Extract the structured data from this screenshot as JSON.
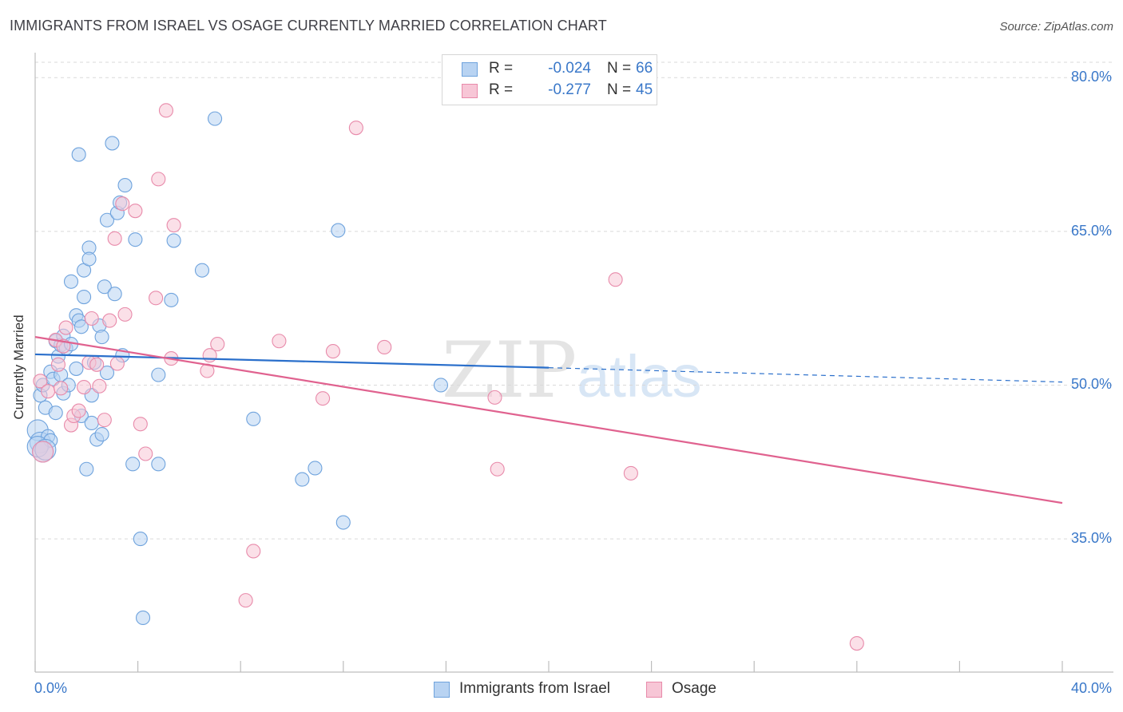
{
  "title": "IMMIGRANTS FROM ISRAEL VS OSAGE CURRENTLY MARRIED CORRELATION CHART",
  "source": "Source: ZipAtlas.com",
  "watermark": {
    "zip": "ZIP",
    "atlas": "atlas"
  },
  "legend": {
    "rows": [
      {
        "r_label": "R =",
        "r_value": "-0.024",
        "n_label": "N =",
        "n_value": "66"
      },
      {
        "r_label": "R =",
        "r_value": "-0.277",
        "n_label": "N =",
        "n_value": "45"
      }
    ]
  },
  "bottom_legend": [
    "Immigrants from Israel",
    "Osage"
  ],
  "colors": {
    "blue_fill": "#b8d3f2",
    "blue_stroke": "#6fa3dd",
    "blue_line": "#2a6fcb",
    "pink_fill": "#f7c6d6",
    "pink_stroke": "#e88aaa",
    "pink_line": "#e0628f",
    "tick_text": "#3a78c9",
    "grid": "#d9d9d9"
  },
  "chart_data": {
    "type": "scatter",
    "title": "IMMIGRANTS FROM ISRAEL VS OSAGE CURRENTLY MARRIED CORRELATION CHART",
    "xlabel": "",
    "ylabel": "Currently Married",
    "xlim": [
      0,
      40
    ],
    "ylim": [
      22,
      81.5
    ],
    "x_tick_labels": [
      "0.0%",
      "40.0%"
    ],
    "y_ticks": [
      35,
      50,
      65,
      80
    ],
    "y_tick_labels": [
      "35.0%",
      "50.0%",
      "65.0%",
      "80.0%"
    ],
    "grid": true,
    "legend_position": "top-center",
    "series": [
      {
        "name": "Immigrants from Israel",
        "r": -0.024,
        "n": 66,
        "trend": {
          "x": [
            0,
            20,
            40
          ],
          "y": [
            53.0,
            51.7,
            50.3
          ],
          "solid_until": 20
        },
        "points": [
          [
            0.1,
            45.6
          ],
          [
            0.2,
            44.4
          ],
          [
            0.2,
            49.0
          ],
          [
            0.3,
            50.0
          ],
          [
            0.3,
            43.5
          ],
          [
            0.4,
            47.8
          ],
          [
            0.5,
            45.0
          ],
          [
            0.6,
            51.3
          ],
          [
            0.6,
            44.6
          ],
          [
            0.7,
            50.6
          ],
          [
            0.8,
            54.3
          ],
          [
            0.8,
            47.3
          ],
          [
            0.9,
            52.8
          ],
          [
            1.0,
            51.0
          ],
          [
            1.0,
            53.9
          ],
          [
            1.1,
            49.2
          ],
          [
            1.1,
            54.8
          ],
          [
            1.2,
            53.6
          ],
          [
            1.3,
            50.0
          ],
          [
            1.4,
            54.0
          ],
          [
            1.4,
            60.1
          ],
          [
            1.6,
            51.6
          ],
          [
            1.6,
            56.8
          ],
          [
            1.7,
            56.3
          ],
          [
            1.7,
            72.5
          ],
          [
            1.8,
            47.0
          ],
          [
            1.8,
            55.7
          ],
          [
            1.9,
            61.2
          ],
          [
            1.9,
            58.6
          ],
          [
            2.0,
            41.8
          ],
          [
            2.1,
            63.4
          ],
          [
            2.1,
            62.3
          ],
          [
            2.2,
            46.3
          ],
          [
            2.2,
            49.0
          ],
          [
            2.3,
            52.2
          ],
          [
            2.4,
            44.7
          ],
          [
            2.5,
            55.8
          ],
          [
            2.6,
            54.7
          ],
          [
            2.6,
            45.2
          ],
          [
            2.7,
            59.6
          ],
          [
            2.8,
            66.1
          ],
          [
            2.8,
            51.2
          ],
          [
            3.0,
            73.6
          ],
          [
            3.1,
            58.9
          ],
          [
            3.2,
            66.8
          ],
          [
            3.3,
            67.8
          ],
          [
            3.4,
            52.9
          ],
          [
            3.5,
            69.5
          ],
          [
            3.8,
            42.3
          ],
          [
            3.9,
            64.2
          ],
          [
            4.1,
            35.0
          ],
          [
            4.2,
            27.3
          ],
          [
            4.8,
            51.0
          ],
          [
            4.8,
            42.3
          ],
          [
            5.3,
            58.3
          ],
          [
            5.4,
            64.1
          ],
          [
            6.5,
            61.2
          ],
          [
            7.0,
            76.0
          ],
          [
            8.5,
            46.7
          ],
          [
            10.4,
            40.8
          ],
          [
            10.9,
            41.9
          ],
          [
            11.8,
            65.1
          ],
          [
            12.0,
            36.6
          ],
          [
            15.8,
            50.0
          ],
          [
            0.1,
            44.0
          ],
          [
            0.4,
            43.7
          ]
        ]
      },
      {
        "name": "Osage",
        "r": -0.277,
        "n": 45,
        "trend": {
          "x": [
            0,
            40
          ],
          "y": [
            54.7,
            38.5
          ],
          "solid_until": 40
        },
        "points": [
          [
            0.2,
            50.4
          ],
          [
            0.3,
            43.5
          ],
          [
            0.5,
            49.4
          ],
          [
            0.8,
            54.4
          ],
          [
            0.9,
            52.0
          ],
          [
            1.0,
            49.7
          ],
          [
            1.2,
            55.6
          ],
          [
            1.4,
            46.1
          ],
          [
            1.5,
            47.0
          ],
          [
            1.7,
            47.5
          ],
          [
            1.9,
            49.8
          ],
          [
            2.1,
            52.2
          ],
          [
            2.2,
            56.5
          ],
          [
            2.4,
            52.0
          ],
          [
            2.5,
            49.9
          ],
          [
            2.7,
            46.6
          ],
          [
            2.9,
            56.3
          ],
          [
            3.1,
            64.3
          ],
          [
            3.2,
            52.1
          ],
          [
            3.4,
            67.7
          ],
          [
            3.5,
            56.9
          ],
          [
            3.9,
            67.0
          ],
          [
            4.1,
            46.2
          ],
          [
            4.3,
            43.3
          ],
          [
            4.7,
            58.5
          ],
          [
            4.8,
            70.1
          ],
          [
            5.1,
            76.8
          ],
          [
            5.3,
            52.6
          ],
          [
            5.4,
            65.6
          ],
          [
            6.7,
            51.4
          ],
          [
            6.8,
            52.9
          ],
          [
            7.1,
            54.0
          ],
          [
            8.2,
            29.0
          ],
          [
            8.5,
            33.8
          ],
          [
            9.5,
            54.3
          ],
          [
            11.2,
            48.7
          ],
          [
            11.6,
            53.3
          ],
          [
            12.5,
            75.1
          ],
          [
            13.6,
            53.7
          ],
          [
            17.9,
            48.8
          ],
          [
            18.0,
            41.8
          ],
          [
            22.6,
            60.3
          ],
          [
            23.2,
            41.4
          ],
          [
            32.0,
            24.8
          ],
          [
            1.1,
            53.8
          ]
        ]
      }
    ]
  }
}
